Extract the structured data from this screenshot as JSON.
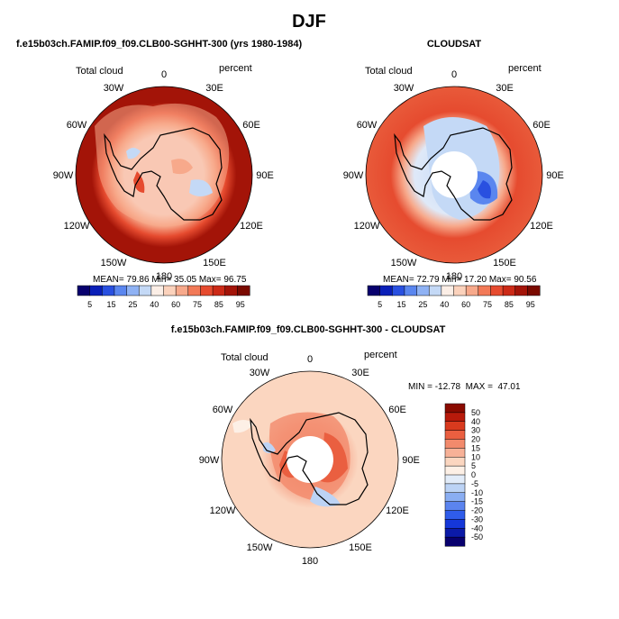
{
  "figure_title": "DJF",
  "colors": {
    "coast": "#000000",
    "hole": "#ffffff",
    "abs_scale": [
      "#08006e",
      "#0a1fb8",
      "#2950e0",
      "#5a86ef",
      "#8fb2f4",
      "#c4d9f6",
      "#fbeee6",
      "#fbd2bc",
      "#f7a98b",
      "#f27a58",
      "#e64b2f",
      "#cc2a17",
      "#a31408",
      "#7a0a00"
    ],
    "diff_scale": [
      "#08006e",
      "#0b1aa8",
      "#1537d9",
      "#2f5cea",
      "#5b84ef",
      "#8aaef2",
      "#bcd3f5",
      "#e2ecf9",
      "#fdf0e6",
      "#fbd6c0",
      "#f7b197",
      "#f28a6c",
      "#ea5f40",
      "#d93a1e",
      "#b81a0b",
      "#8a0a00"
    ]
  },
  "chart_data": [
    {
      "type": "polar-contour-map",
      "panel": "model",
      "title": "f.e15b03ch.FAMIP.f09_f09.CLB00-SGHHT-300 (yrs 1980-1984)",
      "left_label": "Total cloud",
      "right_label": "percent",
      "longitude_labels": [
        "0",
        "30E",
        "60E",
        "90E",
        "120E",
        "150E",
        "180",
        "150W",
        "120W",
        "90W",
        "60W",
        "30W"
      ],
      "stats_text": "MEAN= 79.86  Min= 35.05  Max= 96.75",
      "stats": {
        "mean": 79.86,
        "min": 35.05,
        "max": 96.75
      },
      "colorbar_labels": [
        "5",
        "15",
        "25",
        "40",
        "60",
        "75",
        "85",
        "95"
      ],
      "contour_levels": [
        5,
        10,
        15,
        20,
        25,
        30,
        40,
        50,
        60,
        70,
        75,
        80,
        85,
        90,
        95
      ],
      "has_missing_pole": false
    },
    {
      "type": "polar-contour-map",
      "panel": "obs",
      "title": "CLOUDSAT",
      "left_label": "Total cloud",
      "right_label": "percent",
      "longitude_labels": [
        "0",
        "30E",
        "60E",
        "90E",
        "120E",
        "150E",
        "180",
        "150W",
        "120W",
        "90W",
        "60W",
        "30W"
      ],
      "stats_text": "MEAN= 72.79  Min= 17.20  Max= 90.56",
      "stats": {
        "mean": 72.79,
        "min": 17.2,
        "max": 90.56
      },
      "colorbar_labels": [
        "5",
        "15",
        "25",
        "40",
        "60",
        "75",
        "85",
        "95"
      ],
      "contour_levels": [
        5,
        10,
        15,
        20,
        25,
        30,
        40,
        50,
        60,
        70,
        75,
        80,
        85,
        90,
        95
      ],
      "has_missing_pole": true
    },
    {
      "type": "polar-contour-map",
      "panel": "difference",
      "title": "f.e15b03ch.FAMIP.f09_f09.CLB00-SGHHT-300 - CLOUDSAT",
      "left_label": "Total cloud",
      "right_label": "percent",
      "longitude_labels": [
        "0",
        "30E",
        "60E",
        "90E",
        "120E",
        "150E",
        "180",
        "150W",
        "120W",
        "90W",
        "60W",
        "30W"
      ],
      "stats_text": "MIN = -12.78  MAX =  47.01",
      "stats": {
        "min": -12.78,
        "max": 47.01
      },
      "colorbar_labels": [
        "50",
        "40",
        "30",
        "20",
        "15",
        "10",
        "5",
        "0",
        "-5",
        "-10",
        "-15",
        "-20",
        "-30",
        "-40",
        "-50"
      ],
      "has_missing_pole": true
    }
  ]
}
